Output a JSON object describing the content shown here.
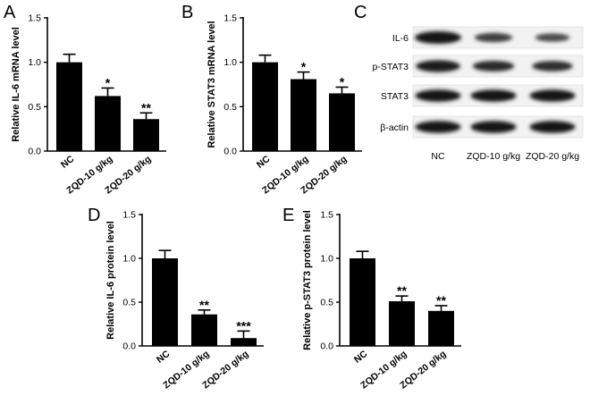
{
  "panels": {
    "a": "A",
    "b": "B",
    "c": "C",
    "d": "D",
    "e": "E"
  },
  "blot": {
    "rows": [
      "IL-6",
      "p-STAT3",
      "STAT3",
      "β-actin"
    ],
    "lanes": [
      "NC",
      "ZQD-10 g/kg",
      "ZQD-20 g/kg"
    ],
    "intensity": [
      [
        1.0,
        0.55,
        0.4
      ],
      [
        0.9,
        0.75,
        0.7
      ],
      [
        0.95,
        0.95,
        0.95
      ],
      [
        0.95,
        0.95,
        0.95
      ]
    ]
  },
  "chart_data": [
    {
      "type": "bar",
      "panel": "A",
      "categories": [
        "NC",
        "ZQD-10 g/kg",
        "ZQD-20 g/kg"
      ],
      "values": [
        1.0,
        0.62,
        0.36
      ],
      "errors": [
        0.09,
        0.09,
        0.07
      ],
      "significance": [
        "",
        "*",
        "**"
      ],
      "ylabel": "Relative IL-6 mRNA level",
      "ylim": [
        0,
        1.5
      ],
      "yticks": [
        "0.0",
        "0.5",
        "1.0",
        "1.5"
      ]
    },
    {
      "type": "bar",
      "panel": "B",
      "categories": [
        "NC",
        "ZQD-10 g/kg",
        "ZQD-20 g/kg"
      ],
      "values": [
        1.0,
        0.81,
        0.65
      ],
      "errors": [
        0.08,
        0.08,
        0.07
      ],
      "significance": [
        "",
        "*",
        "*"
      ],
      "ylabel": "Relative STAT3 mRNA level",
      "ylim": [
        0,
        1.5
      ],
      "yticks": [
        "0.0",
        "0.5",
        "1.0",
        "1.5"
      ]
    },
    {
      "type": "bar",
      "panel": "D",
      "categories": [
        "NC",
        "ZQD-10 g/kg",
        "ZQD-20 g/kg"
      ],
      "values": [
        1.0,
        0.36,
        0.09
      ],
      "errors": [
        0.09,
        0.05,
        0.08
      ],
      "significance": [
        "",
        "**",
        "***"
      ],
      "ylabel": "Relative IL-6 protein level",
      "ylim": [
        0,
        1.5
      ],
      "yticks": [
        "0.0",
        "0.5",
        "1.0",
        "1.5"
      ]
    },
    {
      "type": "bar",
      "panel": "E",
      "categories": [
        "NC",
        "ZQD-10 g/kg",
        "ZQD-20 g/kg"
      ],
      "values": [
        1.0,
        0.51,
        0.4
      ],
      "errors": [
        0.08,
        0.06,
        0.06
      ],
      "significance": [
        "",
        "**",
        "**"
      ],
      "ylabel": "Relative p-STAT3 protein level",
      "ylim": [
        0,
        1.5
      ],
      "yticks": [
        "0.0",
        "0.5",
        "1.0",
        "1.5"
      ]
    }
  ]
}
